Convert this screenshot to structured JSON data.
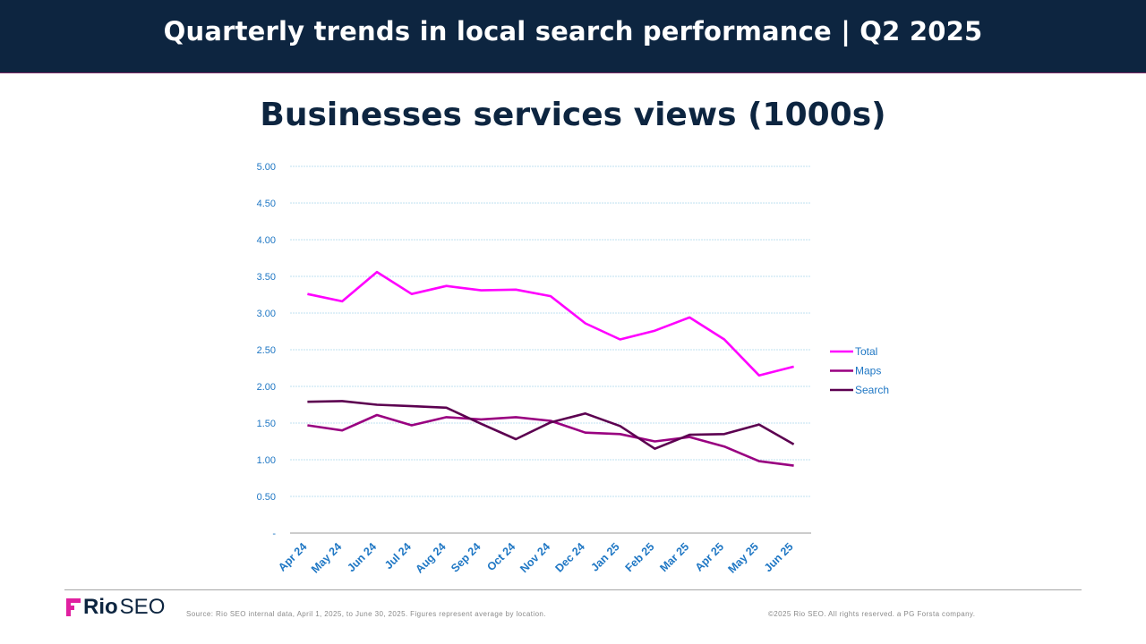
{
  "header": {
    "title": "Quarterly trends in local search performance | Q2 2025"
  },
  "footer": {
    "logo_bold": "Rio",
    "logo_light": "SEO",
    "source": "Source: Rio SEO internal data, April 1, 2025, to June 30, 2025. Figures represent average by location.",
    "copyright": "©2025 Rio SEO. All rights reserved. a PG Forsta company."
  },
  "colors": {
    "header_bg": "#0d2540",
    "total": "#ff00ff",
    "maps": "#990080",
    "search": "#5c0050",
    "axis_text": "#1f77c4",
    "logo_accent": "#e020a0"
  },
  "chart_data": {
    "type": "line",
    "title": "Businesses services views (1000s)",
    "categories": [
      "Apr 24",
      "May 24",
      "Jun 24",
      "Jul 24",
      "Aug 24",
      "Sep 24",
      "Oct 24",
      "Nov 24",
      "Dec 24",
      "Jan 25",
      "Feb 25",
      "Mar 25",
      "Apr 25",
      "May 25",
      "Jun 25"
    ],
    "y_ticks": [
      "-",
      "0.50",
      "1.00",
      "1.50",
      "2.00",
      "2.50",
      "3.00",
      "3.50",
      "4.00",
      "4.50",
      "5.00"
    ],
    "ylim": [
      0,
      5
    ],
    "grid": true,
    "legend_position": "right",
    "series": [
      {
        "name": "Total",
        "color": "#ff00ff",
        "values": [
          3.26,
          3.16,
          3.56,
          3.26,
          3.37,
          3.31,
          3.32,
          3.23,
          2.86,
          2.64,
          2.76,
          2.94,
          2.64,
          2.15,
          2.27
        ]
      },
      {
        "name": "Maps",
        "color": "#990080",
        "values": [
          1.47,
          1.4,
          1.61,
          1.47,
          1.58,
          1.55,
          1.58,
          1.53,
          1.37,
          1.35,
          1.25,
          1.31,
          1.18,
          0.98,
          0.92
        ]
      },
      {
        "name": "Search",
        "color": "#5c0050",
        "values": [
          1.79,
          1.8,
          1.75,
          1.73,
          1.71,
          1.49,
          1.28,
          1.51,
          1.63,
          1.46,
          1.15,
          1.34,
          1.35,
          1.48,
          1.21
        ]
      }
    ]
  }
}
